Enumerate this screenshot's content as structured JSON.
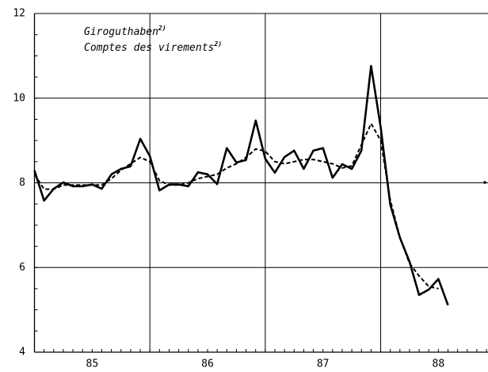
{
  "chart_data": {
    "type": "line",
    "annotations": [
      {
        "text": "Giroguthaben",
        "note": "2)"
      },
      {
        "text": "Comptes des virements",
        "note": "2)"
      }
    ],
    "x": [
      85,
      85.083,
      85.167,
      85.25,
      85.333,
      85.417,
      85.5,
      85.583,
      85.667,
      85.75,
      85.833,
      85.917,
      86,
      86.083,
      86.167,
      86.25,
      86.333,
      86.417,
      86.5,
      86.583,
      86.667,
      86.75,
      86.833,
      86.917,
      87,
      87.083,
      87.167,
      87.25,
      87.333,
      87.417,
      87.5,
      87.583,
      87.667,
      87.75,
      87.833,
      87.917,
      88,
      88.083,
      88.167,
      88.25,
      88.333,
      88.417,
      88.5,
      88.583
    ],
    "series": [
      {
        "name": "Giroguthaben",
        "color": "#000000",
        "dash": "solid",
        "width": 2.6,
        "values": [
          8.29,
          7.58,
          7.86,
          8.01,
          7.92,
          7.92,
          7.96,
          7.86,
          8.2,
          8.33,
          8.39,
          9.04,
          8.63,
          7.82,
          7.96,
          7.96,
          7.92,
          8.25,
          8.2,
          7.97,
          8.82,
          8.48,
          8.54,
          9.47,
          8.57,
          8.24,
          8.61,
          8.76,
          8.33,
          8.76,
          8.82,
          8.12,
          8.44,
          8.33,
          8.76,
          10.76,
          9.32,
          7.49,
          6.7,
          6.14,
          5.35,
          5.48,
          5.73,
          5.11
        ]
      },
      {
        "name": "Comptes des virements",
        "color": "#000000",
        "dash": "dashed",
        "width": 2,
        "values": [
          8.2,
          7.85,
          7.85,
          7.95,
          7.95,
          7.95,
          7.95,
          7.95,
          8.1,
          8.3,
          8.45,
          8.6,
          8.5,
          8.05,
          7.95,
          7.95,
          8.0,
          8.1,
          8.15,
          8.2,
          8.35,
          8.45,
          8.6,
          8.8,
          8.75,
          8.5,
          8.45,
          8.5,
          8.55,
          8.55,
          8.5,
          8.45,
          8.35,
          8.4,
          8.9,
          9.4,
          9.0,
          7.6,
          6.7,
          6.1,
          5.8,
          5.55,
          5.5,
          null
        ]
      }
    ],
    "xlim": [
      85,
      88.93
    ],
    "xticks": [
      {
        "value": 85.5,
        "label": "85"
      },
      {
        "value": 86.5,
        "label": "86"
      },
      {
        "value": 87.5,
        "label": "87"
      },
      {
        "value": 88.5,
        "label": "88"
      }
    ],
    "xgrid": [
      86,
      87,
      88
    ],
    "ylim": [
      4,
      12
    ],
    "yticks": [
      4,
      6,
      8,
      10,
      12
    ],
    "grid": true
  }
}
